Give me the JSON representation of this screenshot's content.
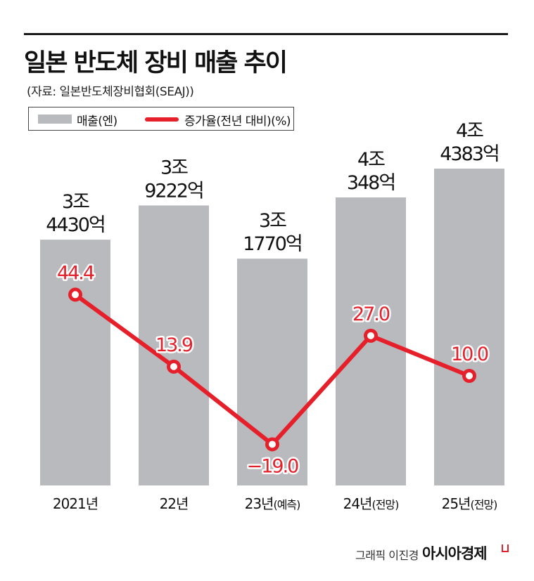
{
  "title": "일본 반도체 장비 매출 추이",
  "source": "(자료: 일본반도체장비협회(SEAJ))",
  "legend": {
    "bar_label": "매출(엔)",
    "line_label": "증가율(전년 대비)(%)"
  },
  "credit": {
    "text": "그래픽 이진경",
    "brand": "아시아경제"
  },
  "colors": {
    "bar": "#b9babd",
    "line": "#e5202a",
    "text": "#111111"
  },
  "chart_data": {
    "type": "bar",
    "categories": [
      "2021년",
      "22년",
      "23년(예측)",
      "24년(전망)",
      "25년(전망)"
    ],
    "category_labels": [
      {
        "main": "2021년",
        "sub": ""
      },
      {
        "main": "22년",
        "sub": ""
      },
      {
        "main": "23년",
        "sub": "(예측)"
      },
      {
        "main": "24년",
        "sub": "(전망)"
      },
      {
        "main": "25년",
        "sub": "(전망)"
      }
    ],
    "series": [
      {
        "name": "매출(엔)",
        "type": "bar",
        "values": [
          3443000000000,
          3922200000000,
          3177000000000,
          4034800000000,
          4438300000000
        ],
        "labels": [
          [
            "3조",
            "4430억"
          ],
          [
            "3조",
            "9222억"
          ],
          [
            "3조",
            "1770억"
          ],
          [
            "4조",
            "348억"
          ],
          [
            "4조",
            "4383억"
          ]
        ]
      },
      {
        "name": "증가율(전년 대비)(%)",
        "type": "line",
        "values": [
          44.4,
          13.9,
          -19.0,
          27.0,
          10.0
        ],
        "labels": [
          "44.4",
          "13.9",
          "−19.0",
          "27.0",
          "10.0"
        ]
      }
    ]
  }
}
